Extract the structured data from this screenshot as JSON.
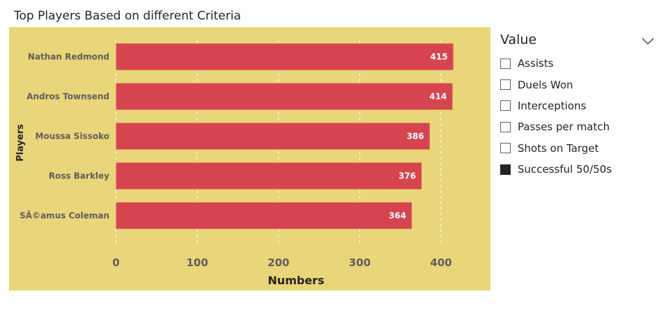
{
  "colors": {
    "plot_background": "#e9d57a",
    "bar": "#d6454f",
    "gridline": "#ffffff",
    "category_text": "#605e5c",
    "tick_text": "#605e5c",
    "axis_title": "#252423",
    "data_label": "#ffffff"
  },
  "chart_data": {
    "type": "bar",
    "orientation": "horizontal",
    "title": "Top Players Based on different Criteria",
    "xlabel": "Numbers",
    "ylabel": "Players",
    "categories": [
      "Nathan Redmond",
      "Andros Townsend",
      "Moussa Sissoko",
      "Ross Barkley",
      "SÃ©amus Coleman"
    ],
    "values": [
      415,
      414,
      386,
      376,
      364
    ],
    "data_labels": [
      "415",
      "414",
      "386",
      "376",
      "364"
    ],
    "xlim": [
      0,
      450
    ],
    "xticks": [
      0,
      100,
      200,
      300,
      400
    ],
    "grid": true,
    "legend": "none"
  },
  "slicer": {
    "title": "Value",
    "items": [
      {
        "label": "Assists",
        "checked": false
      },
      {
        "label": "Duels Won",
        "checked": false
      },
      {
        "label": "Interceptions",
        "checked": false
      },
      {
        "label": "Passes per match",
        "checked": false
      },
      {
        "label": "Shots on Target",
        "checked": false
      },
      {
        "label": "Successful 50/50s",
        "checked": true
      }
    ]
  },
  "icons": {
    "slicer_toggle": "chevron-down-icon"
  }
}
